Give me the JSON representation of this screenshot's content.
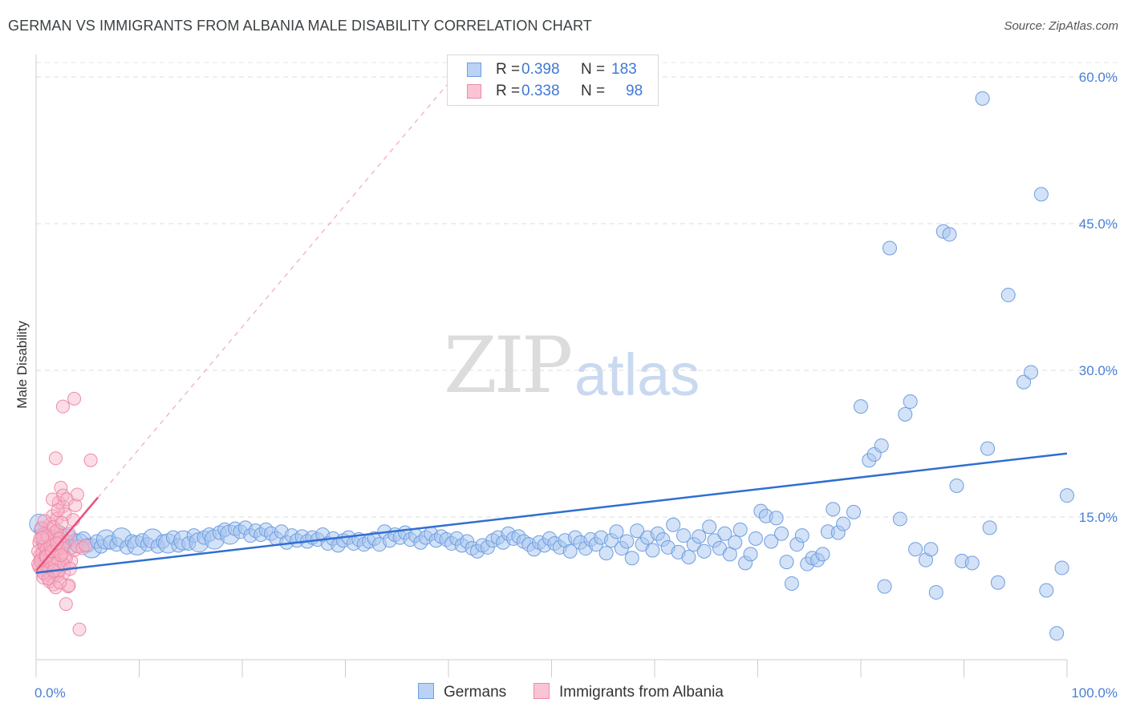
{
  "title": "GERMAN VS IMMIGRANTS FROM ALBANIA MALE DISABILITY CORRELATION CHART",
  "source": "Source: ZipAtlas.com",
  "watermark": {
    "zip": "ZIP",
    "atlas": "atlas"
  },
  "legend": {
    "rows": [
      {
        "r_label": "R = ",
        "r_value": "0.398",
        "n_label": "N = ",
        "n_value": "183"
      },
      {
        "r_label": "R = ",
        "r_value": "0.338",
        "n_label": "N = ",
        "n_value": "98"
      }
    ]
  },
  "bottom_legend": {
    "germans": "Germans",
    "albania": "Immigrants from Albania"
  },
  "colors": {
    "german_fill": "#a8c6f0",
    "german_stroke": "#6f9ee0",
    "german_line": "#2f6fd0",
    "albania_fill": "#f7b3c8",
    "albania_stroke": "#ee8aa8",
    "albania_line": "#e8507c",
    "tick_text": "#4a7fd4"
  },
  "chart_data": {
    "type": "scatter",
    "title": "GERMAN VS IMMIGRANTS FROM ALBANIA MALE DISABILITY CORRELATION CHART",
    "xlabel": "",
    "ylabel": "Male Disability",
    "xlim": [
      0,
      100
    ],
    "ylim": [
      0,
      60
    ],
    "y_ticks": [
      {
        "value": 15,
        "label": "15.0%"
      },
      {
        "value": 30,
        "label": "30.0%"
      },
      {
        "value": 45,
        "label": "45.0%"
      },
      {
        "value": 60,
        "label": "60.0%"
      }
    ],
    "x_ticks": [
      {
        "value": 0,
        "label": "0.0%"
      },
      {
        "value": 100,
        "label": "100.0%"
      }
    ],
    "grid": "horizontal dashed",
    "legend_placement": "top-center",
    "series": [
      {
        "name": "Germans",
        "trend": {
          "x": [
            0,
            100
          ],
          "y": [
            9.3,
            21.5
          ],
          "style": "solid"
        },
        "points": [
          [
            0.3,
            14.3
          ],
          [
            0.5,
            13.7
          ],
          [
            0.8,
            13.2
          ],
          [
            1.0,
            12.4
          ],
          [
            1.3,
            12.8
          ],
          [
            1.6,
            13.0
          ],
          [
            2.0,
            12.5
          ],
          [
            2.3,
            13.4
          ],
          [
            2.7,
            12.1
          ],
          [
            3.0,
            12.8
          ],
          [
            3.4,
            11.9
          ],
          [
            3.8,
            12.6
          ],
          [
            4.2,
            12.3
          ],
          [
            4.6,
            12.8
          ],
          [
            5.0,
            12.1
          ],
          [
            5.4,
            11.8
          ],
          [
            5.9,
            12.5
          ],
          [
            6.3,
            12.0
          ],
          [
            6.8,
            12.7
          ],
          [
            7.2,
            12.4
          ],
          [
            7.8,
            12.2
          ],
          [
            8.3,
            12.9
          ],
          [
            8.8,
            11.9
          ],
          [
            9.3,
            12.5
          ],
          [
            9.8,
            12.1
          ],
          [
            10.3,
            12.6
          ],
          [
            10.8,
            12.2
          ],
          [
            11.3,
            12.8
          ],
          [
            11.8,
            12.0
          ],
          [
            12.3,
            12.5
          ],
          [
            12.8,
            12.3
          ],
          [
            13.3,
            12.9
          ],
          [
            13.8,
            12.1
          ],
          [
            14.3,
            12.6
          ],
          [
            14.8,
            12.3
          ],
          [
            15.3,
            13.1
          ],
          [
            15.8,
            12.4
          ],
          [
            16.3,
            12.9
          ],
          [
            16.8,
            13.2
          ],
          [
            17.3,
            12.7
          ],
          [
            17.8,
            13.4
          ],
          [
            18.3,
            13.7
          ],
          [
            18.8,
            13.2
          ],
          [
            19.3,
            13.8
          ],
          [
            19.8,
            13.5
          ],
          [
            20.3,
            13.9
          ],
          [
            20.8,
            13.1
          ],
          [
            21.3,
            13.6
          ],
          [
            21.8,
            13.2
          ],
          [
            22.3,
            13.7
          ],
          [
            22.8,
            13.3
          ],
          [
            23.3,
            12.8
          ],
          [
            23.8,
            13.5
          ],
          [
            24.3,
            12.4
          ],
          [
            24.8,
            13.1
          ],
          [
            25.3,
            12.6
          ],
          [
            25.8,
            13.0
          ],
          [
            26.3,
            12.5
          ],
          [
            26.8,
            12.9
          ],
          [
            27.3,
            12.7
          ],
          [
            27.8,
            13.2
          ],
          [
            28.3,
            12.3
          ],
          [
            28.8,
            12.8
          ],
          [
            29.3,
            12.1
          ],
          [
            29.8,
            12.6
          ],
          [
            30.3,
            12.9
          ],
          [
            30.8,
            12.3
          ],
          [
            31.3,
            12.7
          ],
          [
            31.8,
            12.2
          ],
          [
            32.3,
            12.5
          ],
          [
            32.8,
            12.8
          ],
          [
            33.3,
            12.2
          ],
          [
            33.8,
            13.5
          ],
          [
            34.3,
            12.6
          ],
          [
            34.8,
            13.2
          ],
          [
            35.3,
            12.9
          ],
          [
            35.8,
            13.4
          ],
          [
            36.3,
            12.7
          ],
          [
            36.8,
            13.1
          ],
          [
            37.3,
            12.4
          ],
          [
            37.8,
            12.9
          ],
          [
            38.3,
            13.3
          ],
          [
            38.8,
            12.6
          ],
          [
            39.3,
            13.0
          ],
          [
            39.8,
            12.7
          ],
          [
            40.3,
            12.3
          ],
          [
            40.8,
            12.8
          ],
          [
            41.3,
            12.1
          ],
          [
            41.8,
            12.5
          ],
          [
            42.3,
            11.8
          ],
          [
            42.8,
            11.5
          ],
          [
            43.3,
            12.1
          ],
          [
            43.8,
            11.9
          ],
          [
            44.3,
            12.6
          ],
          [
            44.8,
            12.9
          ],
          [
            45.3,
            12.4
          ],
          [
            45.8,
            13.3
          ],
          [
            46.3,
            12.8
          ],
          [
            46.8,
            13.0
          ],
          [
            47.3,
            12.5
          ],
          [
            47.8,
            12.2
          ],
          [
            48.3,
            11.7
          ],
          [
            48.8,
            12.4
          ],
          [
            49.3,
            12.1
          ],
          [
            49.8,
            12.8
          ],
          [
            50.3,
            12.3
          ],
          [
            50.8,
            11.9
          ],
          [
            51.3,
            12.6
          ],
          [
            51.8,
            11.5
          ],
          [
            52.3,
            12.9
          ],
          [
            52.8,
            12.4
          ],
          [
            53.3,
            11.8
          ],
          [
            53.8,
            12.7
          ],
          [
            54.3,
            12.2
          ],
          [
            54.8,
            12.9
          ],
          [
            55.3,
            11.3
          ],
          [
            55.8,
            12.6
          ],
          [
            56.3,
            13.5
          ],
          [
            56.8,
            11.8
          ],
          [
            57.3,
            12.5
          ],
          [
            57.8,
            10.8
          ],
          [
            58.3,
            13.6
          ],
          [
            58.8,
            12.2
          ],
          [
            59.3,
            12.9
          ],
          [
            59.8,
            11.6
          ],
          [
            60.3,
            13.3
          ],
          [
            60.8,
            12.7
          ],
          [
            61.3,
            11.9
          ],
          [
            61.8,
            14.2
          ],
          [
            62.3,
            11.4
          ],
          [
            62.8,
            13.1
          ],
          [
            63.3,
            10.9
          ],
          [
            63.8,
            12.2
          ],
          [
            64.3,
            13.0
          ],
          [
            64.8,
            11.5
          ],
          [
            65.3,
            14.0
          ],
          [
            65.8,
            12.6
          ],
          [
            66.3,
            11.8
          ],
          [
            66.8,
            13.3
          ],
          [
            67.3,
            11.2
          ],
          [
            67.8,
            12.4
          ],
          [
            68.3,
            13.7
          ],
          [
            68.8,
            10.3
          ],
          [
            69.3,
            11.2
          ],
          [
            69.8,
            12.8
          ],
          [
            70.3,
            15.6
          ],
          [
            70.8,
            15.1
          ],
          [
            71.3,
            12.5
          ],
          [
            71.8,
            14.9
          ],
          [
            72.3,
            13.3
          ],
          [
            72.8,
            10.4
          ],
          [
            73.3,
            8.2
          ],
          [
            73.8,
            12.2
          ],
          [
            74.3,
            13.1
          ],
          [
            74.8,
            10.2
          ],
          [
            75.3,
            10.8
          ],
          [
            75.8,
            10.6
          ],
          [
            76.3,
            11.2
          ],
          [
            76.8,
            13.5
          ],
          [
            77.3,
            15.8
          ],
          [
            77.8,
            13.4
          ],
          [
            78.3,
            14.3
          ],
          [
            79.3,
            15.5
          ],
          [
            80.0,
            26.3
          ],
          [
            80.8,
            20.8
          ],
          [
            81.3,
            21.4
          ],
          [
            82.0,
            22.3
          ],
          [
            82.3,
            7.9
          ],
          [
            82.8,
            42.5
          ],
          [
            83.8,
            14.8
          ],
          [
            84.3,
            25.5
          ],
          [
            84.8,
            26.8
          ],
          [
            85.3,
            11.7
          ],
          [
            86.3,
            10.6
          ],
          [
            86.8,
            11.7
          ],
          [
            87.3,
            7.3
          ],
          [
            88.0,
            44.2
          ],
          [
            88.6,
            43.9
          ],
          [
            89.3,
            18.2
          ],
          [
            89.8,
            10.5
          ],
          [
            90.8,
            10.3
          ],
          [
            91.8,
            57.8
          ],
          [
            92.3,
            22.0
          ],
          [
            92.5,
            13.9
          ],
          [
            93.3,
            8.3
          ],
          [
            94.3,
            37.7
          ],
          [
            95.8,
            28.8
          ],
          [
            96.5,
            29.8
          ],
          [
            97.5,
            48.0
          ],
          [
            98.0,
            7.5
          ],
          [
            99.0,
            3.1
          ],
          [
            99.5,
            9.8
          ],
          [
            100.0,
            17.2
          ]
        ]
      },
      {
        "name": "Immigrants from Albania",
        "trend": {
          "x": [
            0,
            6
          ],
          "y": [
            9.5,
            17.0
          ],
          "style": "solid",
          "extended_dashed_to": [
            40.5,
            60
          ]
        },
        "points": [
          [
            0.2,
            10.2
          ],
          [
            0.3,
            12.4
          ],
          [
            0.4,
            11.1
          ],
          [
            0.5,
            9.6
          ],
          [
            0.6,
            13.2
          ],
          [
            0.7,
            10.8
          ],
          [
            0.8,
            11.9
          ],
          [
            0.9,
            9.1
          ],
          [
            1.0,
            12.6
          ],
          [
            1.1,
            10.4
          ],
          [
            0.2,
            11.5
          ],
          [
            0.3,
            9.9
          ],
          [
            0.4,
            12.8
          ],
          [
            0.5,
            10.7
          ],
          [
            0.6,
            11.3
          ],
          [
            0.7,
            8.8
          ],
          [
            0.8,
            12.1
          ],
          [
            0.9,
            10.1
          ],
          [
            1.0,
            11.7
          ],
          [
            1.1,
            9.4
          ],
          [
            1.2,
            12.9
          ],
          [
            1.3,
            10.6
          ],
          [
            1.4,
            11.2
          ],
          [
            1.5,
            9.7
          ],
          [
            1.6,
            12.3
          ],
          [
            1.7,
            10.9
          ],
          [
            1.8,
            11.6
          ],
          [
            1.9,
            9.2
          ],
          [
            2.0,
            12.7
          ],
          [
            2.1,
            10.3
          ],
          [
            1.2,
            13.8
          ],
          [
            1.3,
            8.4
          ],
          [
            1.4,
            14.3
          ],
          [
            1.5,
            8.9
          ],
          [
            1.6,
            15.1
          ],
          [
            1.7,
            8.1
          ],
          [
            1.8,
            13.4
          ],
          [
            1.9,
            7.8
          ],
          [
            2.0,
            14.8
          ],
          [
            2.1,
            9.0
          ],
          [
            2.2,
            11.4
          ],
          [
            2.3,
            12.2
          ],
          [
            2.4,
            10.0
          ],
          [
            2.5,
            13.0
          ],
          [
            2.6,
            16.1
          ],
          [
            2.7,
            9.3
          ],
          [
            2.8,
            11.0
          ],
          [
            2.9,
            6.1
          ],
          [
            3.0,
            12.5
          ],
          [
            3.1,
            7.9
          ],
          [
            2.2,
            16.5
          ],
          [
            2.4,
            18.0
          ],
          [
            2.6,
            17.2
          ],
          [
            2.8,
            15.3
          ],
          [
            3.0,
            16.8
          ],
          [
            3.2,
            8.0
          ],
          [
            3.4,
            10.5
          ],
          [
            3.6,
            14.7
          ],
          [
            3.8,
            16.2
          ],
          [
            4.0,
            17.3
          ],
          [
            0.5,
            13.9
          ],
          [
            0.8,
            14.6
          ],
          [
            1.1,
            13.1
          ],
          [
            1.4,
            12.0
          ],
          [
            1.7,
            14.0
          ],
          [
            2.0,
            13.6
          ],
          [
            2.3,
            12.8
          ],
          [
            2.6,
            11.8
          ],
          [
            2.9,
            10.8
          ],
          [
            3.2,
            13.3
          ],
          [
            0.4,
            10.5
          ],
          [
            0.9,
            11.0
          ],
          [
            1.3,
            9.8
          ],
          [
            1.8,
            10.2
          ],
          [
            2.2,
            9.5
          ],
          [
            2.7,
            10.1
          ],
          [
            3.3,
            9.7
          ],
          [
            3.7,
            11.6
          ],
          [
            4.0,
            12.0
          ],
          [
            4.5,
            11.8
          ],
          [
            1.9,
            21.0
          ],
          [
            2.6,
            26.3
          ],
          [
            3.7,
            27.1
          ],
          [
            5.3,
            20.8
          ],
          [
            4.2,
            3.5
          ],
          [
            4.8,
            12.1
          ],
          [
            1.6,
            16.8
          ],
          [
            2.1,
            15.7
          ],
          [
            2.5,
            14.4
          ],
          [
            0.6,
            12.9
          ],
          [
            1.0,
            10.9
          ],
          [
            1.5,
            11.5
          ],
          [
            2.0,
            12.3
          ],
          [
            2.4,
            11.1
          ],
          [
            0.7,
            9.3
          ],
          [
            1.2,
            8.7
          ],
          [
            1.7,
            9.5
          ],
          [
            2.3,
            8.3
          ]
        ]
      }
    ]
  }
}
